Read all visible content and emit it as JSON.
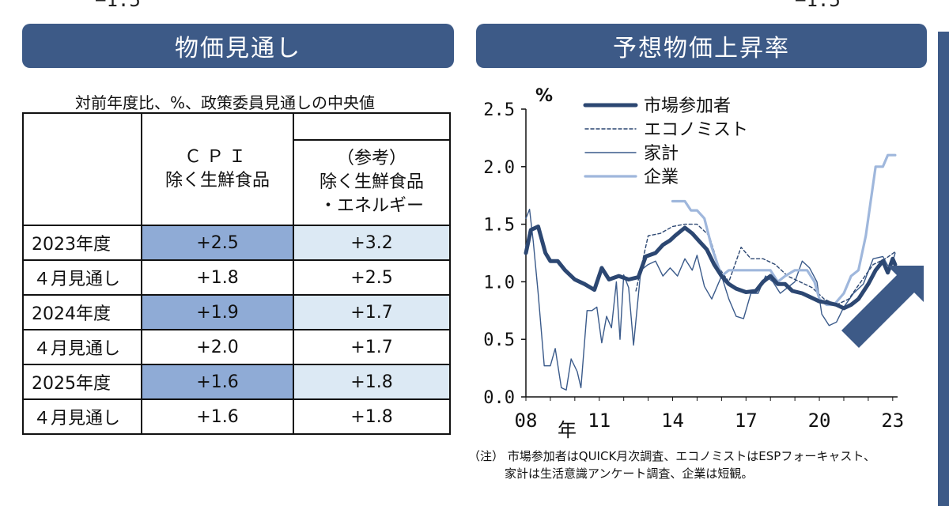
{
  "top_fragments": {
    "left": "−1.5",
    "right": "−1.5"
  },
  "left_panel": {
    "title": "物価見通し",
    "caption": "対前年度比、%、政策委員見通しの中央値",
    "header_cpi": [
      "ＣＰＩ",
      "除く生鮮食品"
    ],
    "header_ref": [
      "（参考）",
      "除く生鮮食品",
      "・エネルギー"
    ],
    "rows": [
      {
        "label": "2023年度",
        "cpi": "+2.5",
        "ref": "+3.2",
        "kind": "year"
      },
      {
        "label": "４月見通し",
        "cpi": "+1.8",
        "ref": "+2.5",
        "kind": "sub"
      },
      {
        "label": "2024年度",
        "cpi": "+1.9",
        "ref": "+1.7",
        "kind": "year"
      },
      {
        "label": "４月見通し",
        "cpi": "+2.0",
        "ref": "+1.7",
        "kind": "sub"
      },
      {
        "label": "2025年度",
        "cpi": "+1.6",
        "ref": "+1.8",
        "kind": "year"
      },
      {
        "label": "４月見通し",
        "cpi": "+1.6",
        "ref": "+1.8",
        "kind": "sub"
      }
    ]
  },
  "right_panel": {
    "title": "予想物価上昇率",
    "unit": "%",
    "year_label": "年",
    "note_lines": [
      "（注） 市場参加者はQUICK月次調査、エコノミストはESPフォーキャスト、",
      "家計は生活意識アンケート調査、企業は短観。"
    ]
  },
  "colors": {
    "banner": "#3d5a87",
    "market": "#2c4772",
    "economist": "#2c4772",
    "household": "#3a5a8a",
    "firm": "#9fb7dc",
    "arrow": "#3d5a87"
  },
  "chart_data": {
    "type": "line",
    "ylim": [
      0.0,
      2.5
    ],
    "yticks": [
      "0.0",
      "0.5",
      "1.0",
      "1.5",
      "2.0",
      "2.5"
    ],
    "xlim": [
      2008,
      2023.2
    ],
    "xticks": [
      {
        "v": 2008,
        "label": "08"
      },
      {
        "v": 2011,
        "label": "11"
      },
      {
        "v": 2014,
        "label": "14"
      },
      {
        "v": 2017,
        "label": "17"
      },
      {
        "v": 2020,
        "label": "20"
      },
      {
        "v": 2023,
        "label": "23"
      }
    ],
    "legend_position": "top-left",
    "series": [
      {
        "name": "市場参加者",
        "style": "thick",
        "points": [
          [
            2008.0,
            1.25
          ],
          [
            2008.2,
            1.45
          ],
          [
            2008.5,
            1.48
          ],
          [
            2008.8,
            1.25
          ],
          [
            2009.0,
            1.18
          ],
          [
            2009.3,
            1.18
          ],
          [
            2009.6,
            1.1
          ],
          [
            2010.0,
            1.02
          ],
          [
            2010.4,
            0.98
          ],
          [
            2010.8,
            0.93
          ],
          [
            2011.1,
            1.12
          ],
          [
            2011.4,
            1.02
          ],
          [
            2011.8,
            1.05
          ],
          [
            2012.2,
            1.02
          ],
          [
            2012.6,
            1.04
          ],
          [
            2012.9,
            1.22
          ],
          [
            2013.3,
            1.25
          ],
          [
            2013.6,
            1.32
          ],
          [
            2013.9,
            1.36
          ],
          [
            2014.1,
            1.4
          ],
          [
            2014.5,
            1.47
          ],
          [
            2014.8,
            1.42
          ],
          [
            2015.1,
            1.35
          ],
          [
            2015.4,
            1.28
          ],
          [
            2015.7,
            1.15
          ],
          [
            2016.0,
            1.05
          ],
          [
            2016.3,
            0.98
          ],
          [
            2016.6,
            0.94
          ],
          [
            2017.0,
            0.91
          ],
          [
            2017.4,
            0.92
          ],
          [
            2017.7,
            1.0
          ],
          [
            2018.0,
            1.05
          ],
          [
            2018.3,
            0.98
          ],
          [
            2018.6,
            0.98
          ],
          [
            2018.9,
            0.92
          ],
          [
            2019.3,
            0.9
          ],
          [
            2019.7,
            0.86
          ],
          [
            2020.0,
            0.83
          ],
          [
            2020.3,
            0.82
          ],
          [
            2020.7,
            0.8
          ],
          [
            2021.0,
            0.77
          ],
          [
            2021.3,
            0.8
          ],
          [
            2021.6,
            0.85
          ],
          [
            2022.0,
            0.98
          ],
          [
            2022.3,
            1.1
          ],
          [
            2022.6,
            1.18
          ],
          [
            2022.8,
            1.08
          ],
          [
            2023.0,
            1.2
          ],
          [
            2023.1,
            1.15
          ]
        ]
      },
      {
        "name": "エコノミスト",
        "style": "dashed",
        "points": [
          [
            2012.5,
            0.92
          ],
          [
            2013.0,
            1.4
          ],
          [
            2013.5,
            1.42
          ],
          [
            2014.0,
            1.48
          ],
          [
            2014.5,
            1.5
          ],
          [
            2015.0,
            1.5
          ],
          [
            2015.5,
            1.4
          ],
          [
            2015.9,
            1.12
          ],
          [
            2016.3,
            1.0
          ],
          [
            2016.8,
            1.3
          ],
          [
            2017.2,
            1.2
          ],
          [
            2017.7,
            1.2
          ],
          [
            2018.2,
            1.15
          ],
          [
            2018.7,
            1.05
          ],
          [
            2019.2,
            1.0
          ],
          [
            2019.7,
            0.95
          ],
          [
            2020.2,
            0.85
          ],
          [
            2020.7,
            0.8
          ],
          [
            2021.2,
            0.85
          ],
          [
            2021.7,
            1.0
          ],
          [
            2022.2,
            1.15
          ],
          [
            2022.7,
            1.2
          ],
          [
            2023.1,
            1.26
          ]
        ]
      },
      {
        "name": "家計",
        "style": "thin",
        "points": [
          [
            2008.0,
            1.55
          ],
          [
            2008.15,
            1.63
          ],
          [
            2008.3,
            1.35
          ],
          [
            2008.5,
            0.9
          ],
          [
            2008.75,
            0.27
          ],
          [
            2009.0,
            0.27
          ],
          [
            2009.2,
            0.42
          ],
          [
            2009.45,
            0.08
          ],
          [
            2009.65,
            0.06
          ],
          [
            2009.85,
            0.33
          ],
          [
            2010.1,
            0.22
          ],
          [
            2010.25,
            0.08
          ],
          [
            2010.5,
            0.75
          ],
          [
            2010.7,
            0.75
          ],
          [
            2010.9,
            0.78
          ],
          [
            2011.1,
            0.47
          ],
          [
            2011.3,
            0.7
          ],
          [
            2011.5,
            0.6
          ],
          [
            2011.7,
            1.0
          ],
          [
            2011.85,
            0.5
          ],
          [
            2012.0,
            1.06
          ],
          [
            2012.2,
            0.95
          ],
          [
            2012.4,
            0.45
          ],
          [
            2012.7,
            1.1
          ],
          [
            2013.0,
            1.15
          ],
          [
            2013.3,
            1.18
          ],
          [
            2013.6,
            1.05
          ],
          [
            2013.9,
            1.12
          ],
          [
            2014.2,
            1.05
          ],
          [
            2014.5,
            1.2
          ],
          [
            2014.8,
            1.1
          ],
          [
            2015.0,
            1.23
          ],
          [
            2015.3,
            0.96
          ],
          [
            2015.6,
            0.85
          ],
          [
            2016.0,
            1.05
          ],
          [
            2016.3,
            0.85
          ],
          [
            2016.6,
            0.7
          ],
          [
            2016.9,
            0.68
          ],
          [
            2017.2,
            0.9
          ],
          [
            2017.5,
            0.9
          ],
          [
            2017.8,
            1.05
          ],
          [
            2018.1,
            1.0
          ],
          [
            2018.4,
            0.9
          ],
          [
            2018.7,
            0.95
          ],
          [
            2019.0,
            1.0
          ],
          [
            2019.3,
            1.18
          ],
          [
            2019.6,
            1.12
          ],
          [
            2019.9,
            1.0
          ],
          [
            2020.1,
            0.72
          ],
          [
            2020.4,
            0.62
          ],
          [
            2020.7,
            0.65
          ],
          [
            2021.0,
            0.78
          ],
          [
            2021.4,
            0.9
          ],
          [
            2021.8,
            0.98
          ],
          [
            2022.2,
            1.2
          ],
          [
            2022.6,
            1.22
          ],
          [
            2022.9,
            1.1
          ],
          [
            2023.1,
            1.25
          ]
        ]
      },
      {
        "name": "企業",
        "style": "light",
        "points": [
          [
            2014.0,
            1.7
          ],
          [
            2014.5,
            1.7
          ],
          [
            2014.75,
            1.62
          ],
          [
            2015.0,
            1.62
          ],
          [
            2015.3,
            1.55
          ],
          [
            2015.6,
            1.3
          ],
          [
            2016.0,
            1.05
          ],
          [
            2016.3,
            1.1
          ],
          [
            2017.0,
            1.1
          ],
          [
            2017.5,
            1.1
          ],
          [
            2017.75,
            1.1
          ],
          [
            2018.0,
            1.1
          ],
          [
            2018.3,
            1.0
          ],
          [
            2018.6,
            1.05
          ],
          [
            2019.0,
            1.1
          ],
          [
            2019.5,
            1.1
          ],
          [
            2019.8,
            1.0
          ],
          [
            2020.0,
            0.85
          ],
          [
            2020.3,
            0.8
          ],
          [
            2020.6,
            0.8
          ],
          [
            2021.0,
            0.9
          ],
          [
            2021.3,
            1.05
          ],
          [
            2021.6,
            1.1
          ],
          [
            2021.9,
            1.4
          ],
          [
            2022.1,
            1.7
          ],
          [
            2022.3,
            2.0
          ],
          [
            2022.6,
            2.0
          ],
          [
            2022.8,
            2.1
          ],
          [
            2023.1,
            2.1
          ]
        ]
      }
    ]
  }
}
